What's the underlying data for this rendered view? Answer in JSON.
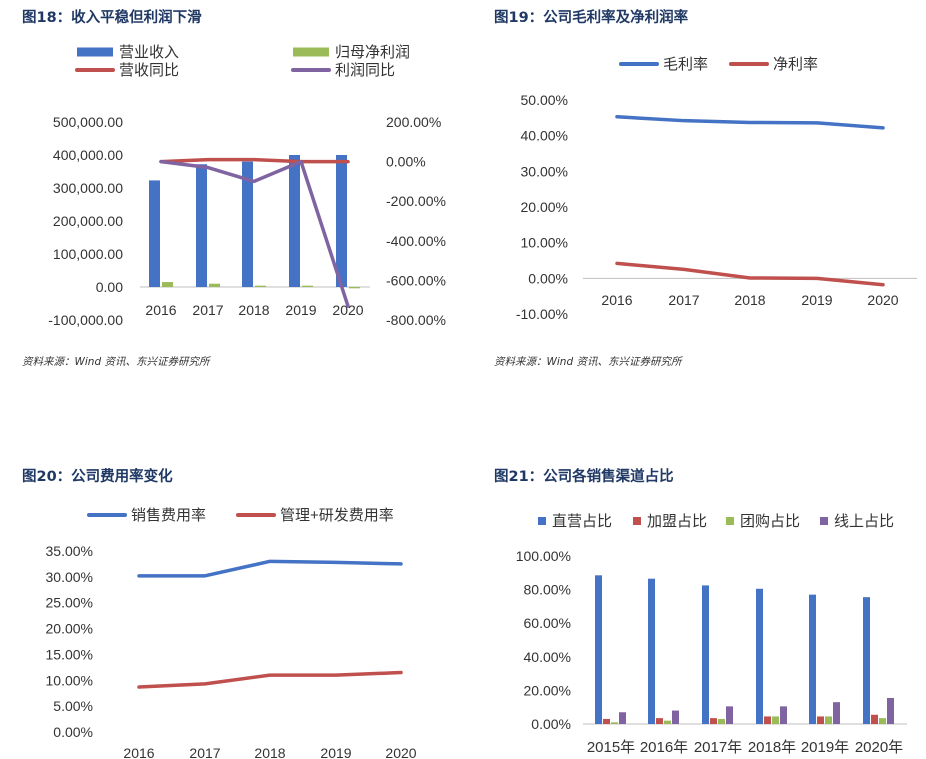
{
  "charts": {
    "c18": {
      "title": "图18：收入平稳但利润下滑",
      "source": "资料来源：Wind 资讯、东兴证券研究所"
    },
    "c19": {
      "title": "图19：公司毛利率及净利润率",
      "source": "资料来源：Wind 资讯、东兴证券研究所"
    },
    "c20": {
      "title": "图20：公司费用率变化"
    },
    "c21": {
      "title": "图21：公司各销售渠道占比"
    }
  },
  "colors": {
    "blue": "#4472c4",
    "red": "#c0504d",
    "green": "#9bbb59",
    "purple": "#8064a2",
    "navy": "#1f3864"
  },
  "chart_data": [
    {
      "id": "c18",
      "type": "bar+line",
      "title": "图18：收入平稳但利润下滑",
      "categories": [
        "2016",
        "2017",
        "2018",
        "2019",
        "2020"
      ],
      "bar_series": [
        {
          "name": "营业收入",
          "color": "#4472c4",
          "values": [
            323000,
            372000,
            380000,
            400000,
            400000
          ]
        },
        {
          "name": "归母净利润",
          "color": "#9bbb59",
          "values": [
            15000,
            10000,
            4000,
            4000,
            -4000
          ]
        }
      ],
      "line_series": [
        {
          "name": "营收同比",
          "color": "#c0504d",
          "values": [
            0,
            10,
            10,
            0,
            0
          ]
        },
        {
          "name": "利润同比",
          "color": "#8064a2",
          "values": [
            0,
            -30,
            -100,
            0,
            -730
          ]
        }
      ],
      "ylim_left": [
        -100000,
        500000
      ],
      "left_ticks": [
        "500,000.00",
        "400,000.00",
        "300,000.00",
        "200,000.00",
        "100,000.00",
        "0.00",
        "-100,000.00"
      ],
      "ylim_right": [
        -800,
        200
      ],
      "right_ticks": [
        "200.00%",
        "0.00%",
        "-200.00%",
        "-400.00%",
        "-600.00%",
        "-800.00%"
      ]
    },
    {
      "id": "c19",
      "type": "line",
      "title": "图19：公司毛利率及净利润率",
      "categories": [
        "2016",
        "2017",
        "2018",
        "2019",
        "2020"
      ],
      "series": [
        {
          "name": "毛利率",
          "color": "#4472c4",
          "values": [
            45.3,
            44.2,
            43.7,
            43.6,
            42.2
          ]
        },
        {
          "name": "净利率",
          "color": "#c0504d",
          "values": [
            4.2,
            2.5,
            0.1,
            0.0,
            -1.8
          ]
        }
      ],
      "ylim": [
        -10,
        50
      ],
      "ticks": [
        "50.00%",
        "40.00%",
        "30.00%",
        "20.00%",
        "10.00%",
        "0.00%",
        "-10.00%"
      ]
    },
    {
      "id": "c20",
      "type": "line",
      "title": "图20：公司费用率变化",
      "categories": [
        "2016",
        "2017",
        "2018",
        "2019",
        "2020"
      ],
      "series": [
        {
          "name": "销售费用率",
          "color": "#4472c4",
          "values": [
            30.2,
            30.2,
            33.0,
            32.8,
            32.5
          ]
        },
        {
          "name": "管理+研发费用率",
          "color": "#c0504d",
          "values": [
            8.7,
            9.3,
            11.0,
            11.0,
            11.5
          ]
        }
      ],
      "ylim": [
        0,
        35
      ],
      "ticks": [
        "35.00%",
        "30.00%",
        "25.00%",
        "20.00%",
        "15.00%",
        "10.00%",
        "5.00%",
        "0.00%"
      ]
    },
    {
      "id": "c21",
      "type": "bar",
      "title": "图21：公司各销售渠道占比",
      "categories": [
        "2015年",
        "2016年",
        "2017年",
        "2018年",
        "2019年",
        "2020年"
      ],
      "series": [
        {
          "name": "直营占比",
          "color": "#4472c4",
          "values": [
            88.5,
            86.5,
            82.5,
            80.5,
            77.0,
            75.5
          ]
        },
        {
          "name": "加盟占比",
          "color": "#c0504d",
          "values": [
            3.0,
            3.5,
            3.5,
            4.5,
            4.5,
            5.5
          ]
        },
        {
          "name": "团购占比",
          "color": "#9bbb59",
          "values": [
            1.0,
            2.0,
            3.0,
            4.5,
            4.5,
            3.5
          ]
        },
        {
          "name": "线上占比",
          "color": "#8064a2",
          "values": [
            7.0,
            8.0,
            10.5,
            10.5,
            13.0,
            15.5
          ]
        }
      ],
      "ylim": [
        0,
        100
      ],
      "ticks": [
        "100.00%",
        "80.00%",
        "60.00%",
        "40.00%",
        "20.00%",
        "0.00%"
      ]
    }
  ]
}
